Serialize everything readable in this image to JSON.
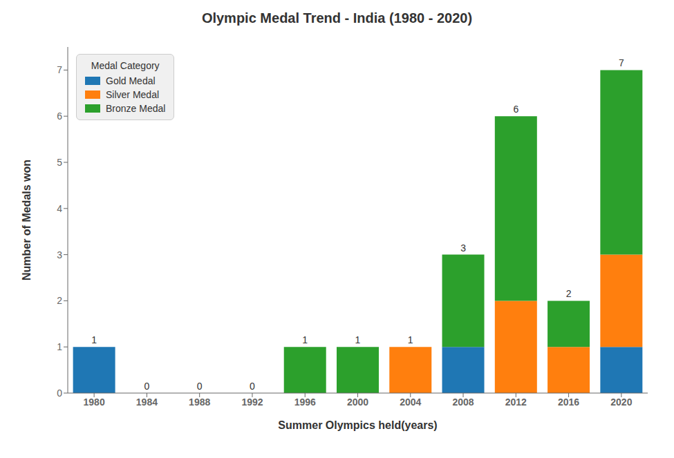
{
  "chart_data": {
    "type": "bar",
    "title": "Olympic Medal Trend - India (1980 - 2020)",
    "xlabel": "Summer Olympics held(years)",
    "ylabel": "Number of Medals won",
    "categories": [
      "1980",
      "1984",
      "1988",
      "1992",
      "1996",
      "2000",
      "2004",
      "2008",
      "2012",
      "2016",
      "2020"
    ],
    "series": [
      {
        "name": "Gold Medal",
        "color": "#1f77b4",
        "values": [
          1,
          0,
          0,
          0,
          0,
          0,
          0,
          1,
          0,
          0,
          1
        ]
      },
      {
        "name": "Silver Medal",
        "color": "#ff7f0e",
        "values": [
          0,
          0,
          0,
          0,
          0,
          0,
          1,
          0,
          2,
          1,
          2
        ]
      },
      {
        "name": "Bronze Medal",
        "color": "#2ca02c",
        "values": [
          0,
          0,
          0,
          0,
          1,
          1,
          0,
          2,
          4,
          1,
          4
        ]
      }
    ],
    "totals": [
      1,
      0,
      0,
      0,
      1,
      1,
      1,
      3,
      6,
      2,
      7
    ],
    "stacked": true,
    "ylim": [
      0,
      7.5
    ],
    "yticks": [
      0,
      1,
      2,
      3,
      4,
      5,
      6,
      7
    ],
    "grid": false,
    "legend": "upper left",
    "legend_title": "Medal Category"
  }
}
